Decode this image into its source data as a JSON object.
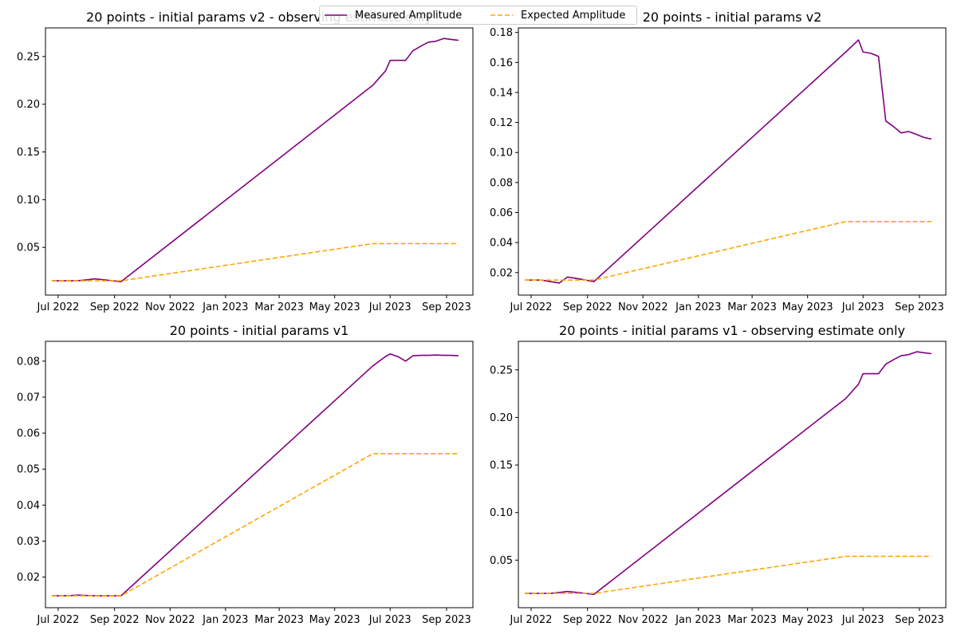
{
  "chart_data": [
    {
      "type": "line",
      "title": "20 points - initial params v2 - observing estimate only",
      "xlabel": "",
      "ylabel": "",
      "xlim": [
        "2022-06-17",
        "2023-09-30"
      ],
      "ylim": [
        0.0,
        0.28
      ],
      "x_ticks": [
        [
          "2022-07-01",
          "Jul 2022"
        ],
        [
          "2022-09-01",
          "Sep 2022"
        ],
        [
          "2022-11-01",
          "Nov 2022"
        ],
        [
          "2023-01-01",
          "Jan 2023"
        ],
        [
          "2023-03-01",
          "Mar 2023"
        ],
        [
          "2023-05-01",
          "May 2023"
        ],
        [
          "2023-07-01",
          "Jul 2023"
        ],
        [
          "2023-09-01",
          "Sep 2023"
        ]
      ],
      "y_ticks": [
        [
          0.05,
          "0.05"
        ],
        [
          0.1,
          "0.10"
        ],
        [
          0.15,
          "0.15"
        ],
        [
          0.2,
          "0.20"
        ],
        [
          0.25,
          "0.25"
        ]
      ],
      "grid": false,
      "series": [
        {
          "name": "Measured Amplitude",
          "color": "#800080",
          "style": "solid",
          "x": [
            "2022-06-24",
            "2022-07-04",
            "2022-07-12",
            "2022-07-22",
            "2022-08-01",
            "2022-08-10",
            "2022-08-21",
            "2022-08-30",
            "2022-09-08",
            "2023-06-12",
            "2023-06-26",
            "2023-07-01",
            "2023-07-10",
            "2023-07-18",
            "2023-07-26",
            "2023-08-04",
            "2023-08-12",
            "2023-08-20",
            "2023-08-29",
            "2023-09-06",
            "2023-09-14"
          ],
          "y": [
            0.015,
            0.015,
            0.015,
            0.015,
            0.016,
            0.017,
            0.016,
            0.015,
            0.014,
            0.22,
            0.235,
            0.246,
            0.246,
            0.246,
            0.256,
            0.261,
            0.265,
            0.266,
            0.269,
            0.268,
            0.267
          ]
        },
        {
          "name": "Expected Amplitude",
          "color": "#ffa500",
          "style": "dashed",
          "x": [
            "2022-06-24",
            "2022-08-30",
            "2022-09-08",
            "2023-06-12",
            "2023-09-14"
          ],
          "y": [
            0.015,
            0.015,
            0.015,
            0.054,
            0.054
          ]
        }
      ]
    },
    {
      "type": "line",
      "title": "20 points - initial params v2",
      "xlabel": "",
      "ylabel": "",
      "xlim": [
        "2022-06-17",
        "2023-09-30"
      ],
      "ylim": [
        0.005,
        0.183
      ],
      "x_ticks": [
        [
          "2022-07-01",
          "Jul 2022"
        ],
        [
          "2022-09-01",
          "Sep 2022"
        ],
        [
          "2022-11-01",
          "Nov 2022"
        ],
        [
          "2023-01-01",
          "Jan 2023"
        ],
        [
          "2023-03-01",
          "Mar 2023"
        ],
        [
          "2023-05-01",
          "May 2023"
        ],
        [
          "2023-07-01",
          "Jul 2023"
        ],
        [
          "2023-09-01",
          "Sep 2023"
        ]
      ],
      "y_ticks": [
        [
          0.02,
          "0.02"
        ],
        [
          0.04,
          "0.04"
        ],
        [
          0.06,
          "0.06"
        ],
        [
          0.08,
          "0.08"
        ],
        [
          0.1,
          "0.10"
        ],
        [
          0.12,
          "0.12"
        ],
        [
          0.14,
          "0.14"
        ],
        [
          0.16,
          "0.16"
        ],
        [
          0.18,
          "0.18"
        ]
      ],
      "grid": false,
      "series": [
        {
          "name": "Measured Amplitude",
          "color": "#800080",
          "style": "solid",
          "x": [
            "2022-06-24",
            "2022-07-04",
            "2022-07-12",
            "2022-07-22",
            "2022-08-01",
            "2022-08-10",
            "2022-08-21",
            "2022-08-30",
            "2022-09-08",
            "2023-06-12",
            "2023-06-26",
            "2023-07-01",
            "2023-07-10",
            "2023-07-18",
            "2023-07-26",
            "2023-08-04",
            "2023-08-12",
            "2023-08-20",
            "2023-08-29",
            "2023-09-06",
            "2023-09-14"
          ],
          "y": [
            0.015,
            0.015,
            0.015,
            0.014,
            0.013,
            0.017,
            0.016,
            0.015,
            0.014,
            0.167,
            0.175,
            0.167,
            0.166,
            0.164,
            0.121,
            0.117,
            0.113,
            0.114,
            0.112,
            0.11,
            0.109
          ]
        },
        {
          "name": "Expected Amplitude",
          "color": "#ffa500",
          "style": "dashed",
          "x": [
            "2022-06-24",
            "2022-08-30",
            "2022-09-08",
            "2023-06-12",
            "2023-09-14"
          ],
          "y": [
            0.015,
            0.015,
            0.015,
            0.054,
            0.054
          ]
        }
      ]
    },
    {
      "type": "line",
      "title": "20 points - initial params v1",
      "xlabel": "",
      "ylabel": "",
      "xlim": [
        "2022-06-17",
        "2023-09-30"
      ],
      "ylim": [
        0.0115,
        0.0855
      ],
      "x_ticks": [
        [
          "2022-07-01",
          "Jul 2022"
        ],
        [
          "2022-09-01",
          "Sep 2022"
        ],
        [
          "2022-11-01",
          "Nov 2022"
        ],
        [
          "2023-01-01",
          "Jan 2023"
        ],
        [
          "2023-03-01",
          "Mar 2023"
        ],
        [
          "2023-05-01",
          "May 2023"
        ],
        [
          "2023-07-01",
          "Jul 2023"
        ],
        [
          "2023-09-01",
          "Sep 2023"
        ]
      ],
      "y_ticks": [
        [
          0.02,
          "0.02"
        ],
        [
          0.03,
          "0.03"
        ],
        [
          0.04,
          "0.04"
        ],
        [
          0.05,
          "0.05"
        ],
        [
          0.06,
          "0.06"
        ],
        [
          0.07,
          "0.07"
        ],
        [
          0.08,
          "0.08"
        ]
      ],
      "grid": false,
      "series": [
        {
          "name": "Measured Amplitude",
          "color": "#800080",
          "style": "solid",
          "x": [
            "2022-06-24",
            "2022-07-04",
            "2022-07-12",
            "2022-07-22",
            "2022-08-01",
            "2022-08-10",
            "2022-08-21",
            "2022-08-30",
            "2022-09-08",
            "2023-06-12",
            "2023-06-26",
            "2023-07-01",
            "2023-07-10",
            "2023-07-18",
            "2023-07-26",
            "2023-08-04",
            "2023-08-12",
            "2023-08-20",
            "2023-08-29",
            "2023-09-06",
            "2023-09-14"
          ],
          "y": [
            0.0148,
            0.0148,
            0.0148,
            0.015,
            0.0149,
            0.0148,
            0.0148,
            0.0148,
            0.0148,
            0.0787,
            0.0813,
            0.082,
            0.0812,
            0.08,
            0.0815,
            0.0816,
            0.0816,
            0.0817,
            0.0816,
            0.0816,
            0.0815
          ]
        },
        {
          "name": "Expected Amplitude",
          "color": "#ffa500",
          "style": "dashed",
          "x": [
            "2022-06-24",
            "2022-08-30",
            "2022-09-08",
            "2023-06-12",
            "2023-09-14"
          ],
          "y": [
            0.0148,
            0.0148,
            0.0148,
            0.0543,
            0.0543
          ]
        }
      ]
    },
    {
      "type": "line",
      "title": "20 points - initial params v1 - observing estimate only",
      "xlabel": "",
      "ylabel": "",
      "xlim": [
        "2022-06-17",
        "2023-09-30"
      ],
      "ylim": [
        0.0,
        0.28
      ],
      "x_ticks": [
        [
          "2022-07-01",
          "Jul 2022"
        ],
        [
          "2022-09-01",
          "Sep 2022"
        ],
        [
          "2022-11-01",
          "Nov 2022"
        ],
        [
          "2023-01-01",
          "Jan 2023"
        ],
        [
          "2023-03-01",
          "Mar 2023"
        ],
        [
          "2023-05-01",
          "May 2023"
        ],
        [
          "2023-07-01",
          "Jul 2023"
        ],
        [
          "2023-09-01",
          "Sep 2023"
        ]
      ],
      "y_ticks": [
        [
          0.05,
          "0.05"
        ],
        [
          0.1,
          "0.10"
        ],
        [
          0.15,
          "0.15"
        ],
        [
          0.2,
          "0.20"
        ],
        [
          0.25,
          "0.25"
        ]
      ],
      "grid": false,
      "series": [
        {
          "name": "Measured Amplitude",
          "color": "#800080",
          "style": "solid",
          "x": [
            "2022-06-24",
            "2022-07-04",
            "2022-07-12",
            "2022-07-22",
            "2022-08-01",
            "2022-08-10",
            "2022-08-21",
            "2022-08-30",
            "2022-09-08",
            "2023-06-12",
            "2023-06-26",
            "2023-07-01",
            "2023-07-10",
            "2023-07-18",
            "2023-07-26",
            "2023-08-04",
            "2023-08-12",
            "2023-08-20",
            "2023-08-29",
            "2023-09-06",
            "2023-09-14"
          ],
          "y": [
            0.015,
            0.015,
            0.015,
            0.015,
            0.016,
            0.017,
            0.016,
            0.015,
            0.014,
            0.22,
            0.235,
            0.246,
            0.246,
            0.246,
            0.256,
            0.261,
            0.265,
            0.266,
            0.269,
            0.268,
            0.267
          ]
        },
        {
          "name": "Expected Amplitude",
          "color": "#ffa500",
          "style": "dashed",
          "x": [
            "2022-06-24",
            "2022-08-30",
            "2022-09-08",
            "2023-06-12",
            "2023-09-14"
          ],
          "y": [
            0.015,
            0.015,
            0.015,
            0.054,
            0.054
          ]
        }
      ]
    }
  ],
  "legend": {
    "placement": "top-center",
    "items": [
      {
        "label": "Measured Amplitude",
        "color": "#800080",
        "style": "solid"
      },
      {
        "label": "Expected Amplitude",
        "color": "#ffa500",
        "style": "dashed"
      }
    ]
  }
}
